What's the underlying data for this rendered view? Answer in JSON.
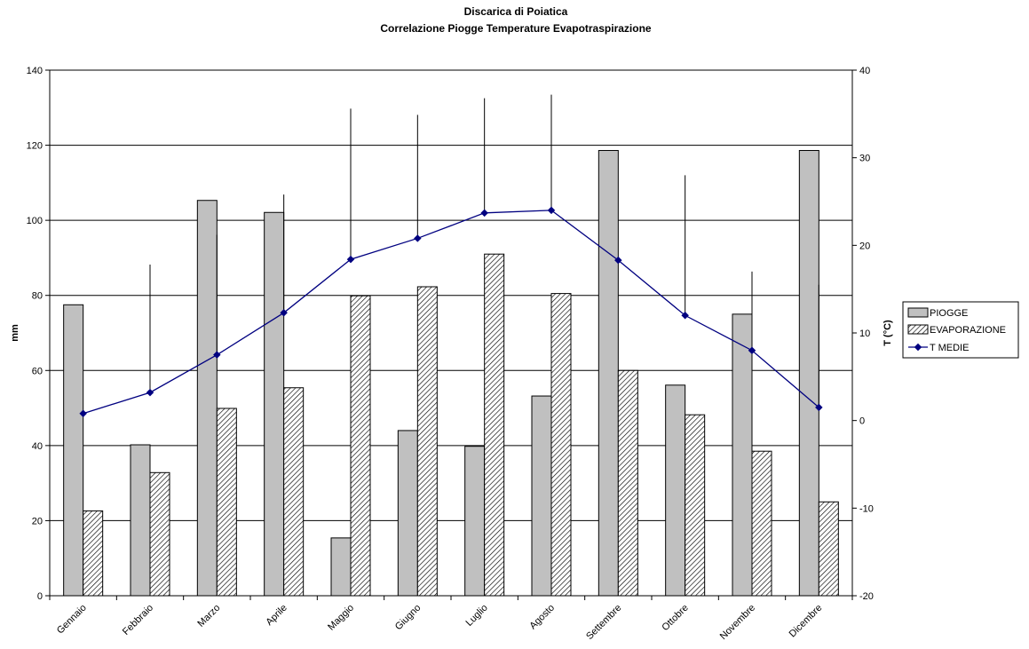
{
  "chart_data": {
    "type": "bar",
    "title": "Discarica di Poiatica",
    "subtitle": "Correlazione Piogge Temperature Evapotraspirazione",
    "ylabel": "mm",
    "y2label": "T (°C)",
    "ylim": [
      0,
      140
    ],
    "y2lim": [
      -20,
      40
    ],
    "yticks": [
      "0",
      "20",
      "40",
      "60",
      "80",
      "100",
      "120",
      "140"
    ],
    "y2ticks": [
      "-20",
      "-10",
      "0",
      "10",
      "20",
      "30",
      "40"
    ],
    "categories": [
      "Gennaio",
      "Febbraio",
      "Marzo",
      "Aprile",
      "Maggio",
      "Giugno",
      "Luglio",
      "Agosto",
      "Settembre",
      "Ottobre",
      "Novembre",
      "Dicembre"
    ],
    "series": [
      {
        "name": "PIOGGE",
        "type": "bar",
        "axis": "left",
        "color": "#c0c0c0",
        "values": [
          77.5,
          40.2,
          105.3,
          102.1,
          15.4,
          44.0,
          39.8,
          53.2,
          118.6,
          56.1,
          75.0,
          118.6
        ]
      },
      {
        "name": "EVAPORAZIONE",
        "type": "bar",
        "axis": "left",
        "pattern": "diagonal-hatch",
        "color": "#000000",
        "values": [
          22.6,
          32.8,
          49.9,
          55.4,
          79.9,
          82.3,
          91.0,
          80.5,
          60.0,
          48.2,
          38.5,
          25.0
        ]
      },
      {
        "name": "T MEDIE",
        "type": "line",
        "axis": "right",
        "color": "#000080",
        "values": [
          0.8,
          3.2,
          7.5,
          12.3,
          18.4,
          20.8,
          23.7,
          24.0,
          18.3,
          12.0,
          8.0,
          1.5
        ]
      }
    ],
    "error_bars": {
      "series": "T MEDIE",
      "upper": [
        null,
        17.8,
        21.2,
        25.8,
        35.6,
        34.9,
        36.8,
        37.2,
        null,
        28.0,
        17.0,
        15.5
      ],
      "lower": [
        null,
        null,
        null,
        null,
        null,
        null,
        null,
        null,
        null,
        null,
        -0.3,
        null
      ]
    },
    "grid": true,
    "legend_position": "right"
  }
}
